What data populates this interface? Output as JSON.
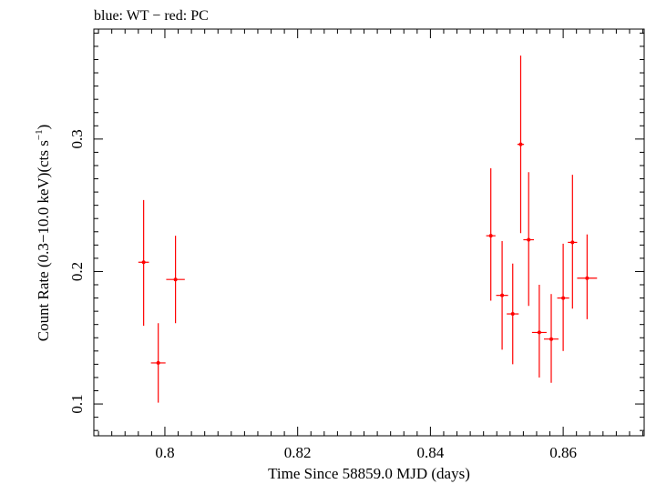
{
  "chart_data": {
    "type": "scatter",
    "title": "blue: WT − red: PC",
    "xlabel": "Time Since 58859.0 MJD (days)",
    "ylabel": "Count Rate (0.3−10.0 keV)(cts s",
    "ylabel_sup": "−1",
    "ylabel_tail": ")",
    "xlim": [
      0.7893,
      0.8722
    ],
    "ylim": [
      0.076,
      0.383
    ],
    "xticks": [
      0.8,
      0.82,
      0.84,
      0.86
    ],
    "xtick_labels": [
      "0.8",
      "0.82",
      "0.84",
      "0.86"
    ],
    "yticks": [
      0.1,
      0.2,
      0.3
    ],
    "ytick_labels": [
      "0.1",
      "0.2",
      "0.3"
    ],
    "grid": false,
    "series": [
      {
        "name": "PC",
        "color": "#ff0000",
        "points": [
          {
            "x": 0.7968,
            "y": 0.207,
            "xerr": 0.0008,
            "ylo": 0.159,
            "yhi": 0.254
          },
          {
            "x": 0.799,
            "y": 0.131,
            "xerr": 0.0011,
            "ylo": 0.101,
            "yhi": 0.161
          },
          {
            "x": 0.8016,
            "y": 0.194,
            "xerr": 0.0014,
            "ylo": 0.161,
            "yhi": 0.227
          },
          {
            "x": 0.8491,
            "y": 0.227,
            "xerr": 0.0007,
            "ylo": 0.178,
            "yhi": 0.278
          },
          {
            "x": 0.8508,
            "y": 0.182,
            "xerr": 0.0009,
            "ylo": 0.141,
            "yhi": 0.223
          },
          {
            "x": 0.8524,
            "y": 0.168,
            "xerr": 0.0009,
            "ylo": 0.13,
            "yhi": 0.206
          },
          {
            "x": 0.8536,
            "y": 0.296,
            "xerr": 0.0005,
            "ylo": 0.229,
            "yhi": 0.363
          },
          {
            "x": 0.8548,
            "y": 0.224,
            "xerr": 0.0008,
            "ylo": 0.174,
            "yhi": 0.275
          },
          {
            "x": 0.8564,
            "y": 0.154,
            "xerr": 0.0011,
            "ylo": 0.12,
            "yhi": 0.19
          },
          {
            "x": 0.8582,
            "y": 0.149,
            "xerr": 0.0011,
            "ylo": 0.116,
            "yhi": 0.183
          },
          {
            "x": 0.86,
            "y": 0.18,
            "xerr": 0.0009,
            "ylo": 0.14,
            "yhi": 0.221
          },
          {
            "x": 0.8614,
            "y": 0.222,
            "xerr": 0.0007,
            "ylo": 0.172,
            "yhi": 0.273
          },
          {
            "x": 0.8636,
            "y": 0.195,
            "xerr": 0.0015,
            "ylo": 0.164,
            "yhi": 0.228
          }
        ]
      }
    ]
  }
}
